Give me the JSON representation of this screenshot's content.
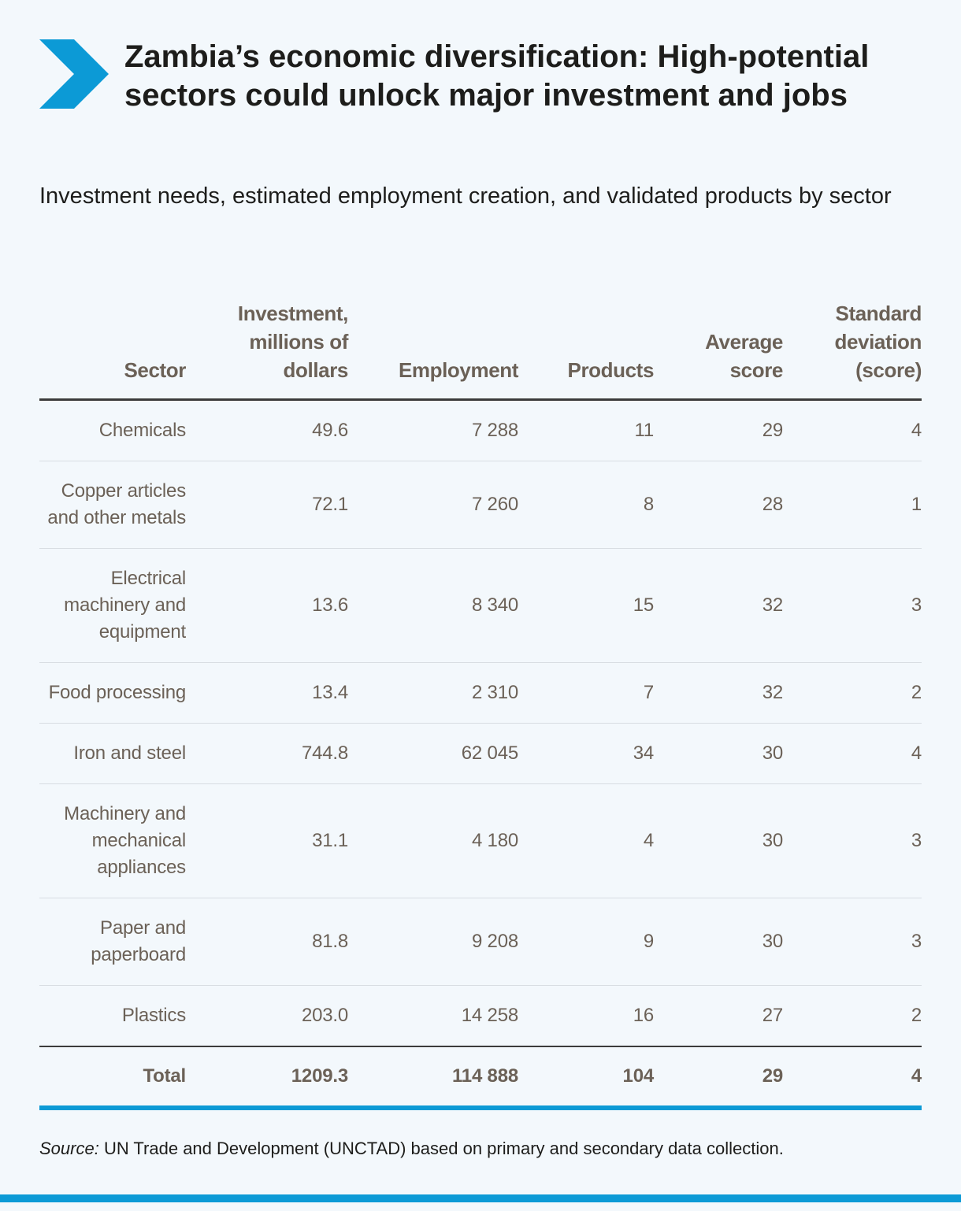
{
  "title": "Zambia’s economic diversification: High-potential sectors could unlock major investment and jobs",
  "subtitle": "Investment needs, estimated employment creation, and validated products by sector",
  "source_label": "Source:",
  "source_text": " UN Trade and Development (UNCTAD) based on primary and secondary data collection.",
  "colors": {
    "accent": "#0c9ad6",
    "text": "#1d1d1b",
    "table_text": "#6b6157",
    "background": "#f3f8fc"
  },
  "icons": {
    "header_mark": "chevron-right-icon"
  },
  "chart_data": {
    "type": "table",
    "columns": [
      "Sector",
      "Investment, millions of dollars",
      "Employment",
      "Products",
      "Average score",
      "Standard deviation (score)"
    ],
    "rows": [
      {
        "sector": "Chemicals",
        "investment": "49.6",
        "employment": "7 288",
        "products": "11",
        "average_score": "29",
        "std_dev": "4"
      },
      {
        "sector": "Copper articles and other metals",
        "investment": "72.1",
        "employment": "7 260",
        "products": "8",
        "average_score": "28",
        "std_dev": "1"
      },
      {
        "sector": "Electrical machinery and equipment",
        "investment": "13.6",
        "employment": "8 340",
        "products": "15",
        "average_score": "32",
        "std_dev": "3"
      },
      {
        "sector": "Food processing",
        "investment": "13.4",
        "employment": "2 310",
        "products": "7",
        "average_score": "32",
        "std_dev": "2"
      },
      {
        "sector": "Iron and steel",
        "investment": "744.8",
        "employment": "62 045",
        "products": "34",
        "average_score": "30",
        "std_dev": "4"
      },
      {
        "sector": "Machinery and mechanical appliances",
        "investment": "31.1",
        "employment": "4 180",
        "products": "4",
        "average_score": "30",
        "std_dev": "3"
      },
      {
        "sector": "Paper and paperboard",
        "investment": "81.8",
        "employment": "9 208",
        "products": "9",
        "average_score": "30",
        "std_dev": "3"
      },
      {
        "sector": "Plastics",
        "investment": "203.0",
        "employment": "14 258",
        "products": "16",
        "average_score": "27",
        "std_dev": "2"
      }
    ],
    "total": {
      "sector": "Total",
      "investment": "1209.3",
      "employment": "114 888",
      "products": "104",
      "average_score": "29",
      "std_dev": "4"
    }
  }
}
